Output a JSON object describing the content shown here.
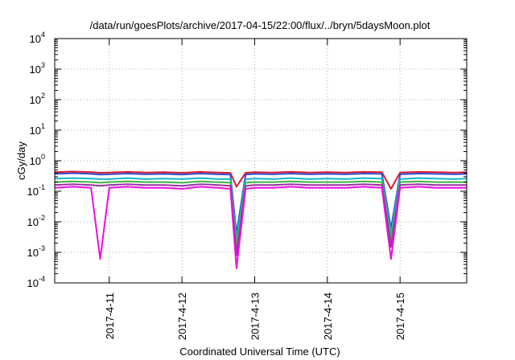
{
  "chart_data": {
    "type": "line",
    "title": "/data/run/goesPlots/archive/2017-04-15/22:00/flux/../bryn/5daysMoon.plot",
    "xlabel": "Coordinated Universal Time (UTC)",
    "ylabel": "cGy/day",
    "yscale": "log",
    "ylim": [
      0.0001,
      10000
    ],
    "xlim": [
      "2017-04-10 06:00",
      "2017-04-15 22:00"
    ],
    "grid": true,
    "legend": "none",
    "y_ticks": [
      {
        "value": 0.0001,
        "base": "10",
        "exp": "-4"
      },
      {
        "value": 0.001,
        "base": "10",
        "exp": "-3"
      },
      {
        "value": 0.01,
        "base": "10",
        "exp": "-2"
      },
      {
        "value": 0.1,
        "base": "10",
        "exp": "-1"
      },
      {
        "value": 1,
        "base": "10",
        "exp": "0"
      },
      {
        "value": 10,
        "base": "10",
        "exp": "1"
      },
      {
        "value": 100,
        "base": "10",
        "exp": "2"
      },
      {
        "value": 1000,
        "base": "10",
        "exp": "3"
      },
      {
        "value": 10000,
        "base": "10",
        "exp": "4"
      }
    ],
    "x_ticks": [
      {
        "value": "2017-04-11 00:00",
        "label": "2017-4-11"
      },
      {
        "value": "2017-04-12 00:00",
        "label": "2017-4-12"
      },
      {
        "value": "2017-04-13 00:00",
        "label": "2017-4-13"
      },
      {
        "value": "2017-04-14 00:00",
        "label": "2017-4-14"
      },
      {
        "value": "2017-04-15 00:00",
        "label": "2017-4-15"
      }
    ],
    "x": [
      "2017-04-10 06:00",
      "2017-04-10 12:00",
      "2017-04-10 18:00",
      "2017-04-10 21:00",
      "2017-04-11 00:00",
      "2017-04-11 06:00",
      "2017-04-11 12:00",
      "2017-04-11 18:00",
      "2017-04-12 00:00",
      "2017-04-12 06:00",
      "2017-04-12 12:00",
      "2017-04-12 16:00",
      "2017-04-12 18:00",
      "2017-04-12 21:00",
      "2017-04-13 00:00",
      "2017-04-13 06:00",
      "2017-04-13 12:00",
      "2017-04-13 18:00",
      "2017-04-14 00:00",
      "2017-04-14 06:00",
      "2017-04-14 12:00",
      "2017-04-14 18:00",
      "2017-04-14 21:00",
      "2017-04-15 00:00",
      "2017-04-15 06:00",
      "2017-04-15 12:00",
      "2017-04-15 18:00",
      "2017-04-15 22:00"
    ],
    "series": [
      {
        "color": "#e0192a",
        "values": [
          0.42,
          0.44,
          0.42,
          0.4,
          0.41,
          0.43,
          0.41,
          0.42,
          0.4,
          0.43,
          0.41,
          0.4,
          0.14,
          0.4,
          0.42,
          0.41,
          0.43,
          0.41,
          0.42,
          0.41,
          0.43,
          0.42,
          0.12,
          0.41,
          0.43,
          0.42,
          0.41,
          0.42
        ]
      },
      {
        "color": "#2f4bd6",
        "values": [
          0.37,
          0.39,
          0.37,
          0.35,
          0.36,
          0.38,
          0.36,
          0.37,
          0.35,
          0.38,
          0.36,
          0.35,
          0.004,
          0.35,
          0.37,
          0.36,
          0.38,
          0.36,
          0.37,
          0.36,
          0.38,
          0.37,
          0.006,
          0.36,
          0.38,
          0.37,
          0.36,
          0.37
        ]
      },
      {
        "color": "#16b7c9",
        "values": [
          0.26,
          0.27,
          0.26,
          0.25,
          0.25,
          0.27,
          0.25,
          0.26,
          0.25,
          0.27,
          0.25,
          0.25,
          0.0025,
          0.25,
          0.26,
          0.25,
          0.27,
          0.25,
          0.26,
          0.25,
          0.27,
          0.26,
          0.004,
          0.25,
          0.27,
          0.26,
          0.25,
          0.26
        ]
      },
      {
        "color": "#3fb43f",
        "values": [
          0.2,
          0.21,
          0.2,
          0.19,
          0.2,
          0.21,
          0.2,
          0.2,
          0.19,
          0.21,
          0.2,
          0.19,
          0.0015,
          0.19,
          0.2,
          0.2,
          0.21,
          0.2,
          0.2,
          0.2,
          0.21,
          0.2,
          0.0025,
          0.2,
          0.21,
          0.2,
          0.2,
          0.2
        ]
      },
      {
        "color": "#9b2fa3",
        "values": [
          0.16,
          0.17,
          0.16,
          0.15,
          0.16,
          0.17,
          0.16,
          0.16,
          0.15,
          0.17,
          0.16,
          0.15,
          0.0008,
          0.15,
          0.16,
          0.16,
          0.17,
          0.16,
          0.16,
          0.16,
          0.17,
          0.16,
          0.0015,
          0.16,
          0.17,
          0.16,
          0.16,
          0.16
        ]
      },
      {
        "color": "#f00ce6",
        "values": [
          0.13,
          0.14,
          0.13,
          0.0006,
          0.13,
          0.14,
          0.13,
          0.13,
          0.12,
          0.14,
          0.13,
          0.12,
          0.0003,
          0.12,
          0.13,
          0.13,
          0.14,
          0.13,
          0.13,
          0.13,
          0.14,
          0.13,
          0.0006,
          0.13,
          0.14,
          0.13,
          0.13,
          0.13
        ]
      }
    ]
  }
}
